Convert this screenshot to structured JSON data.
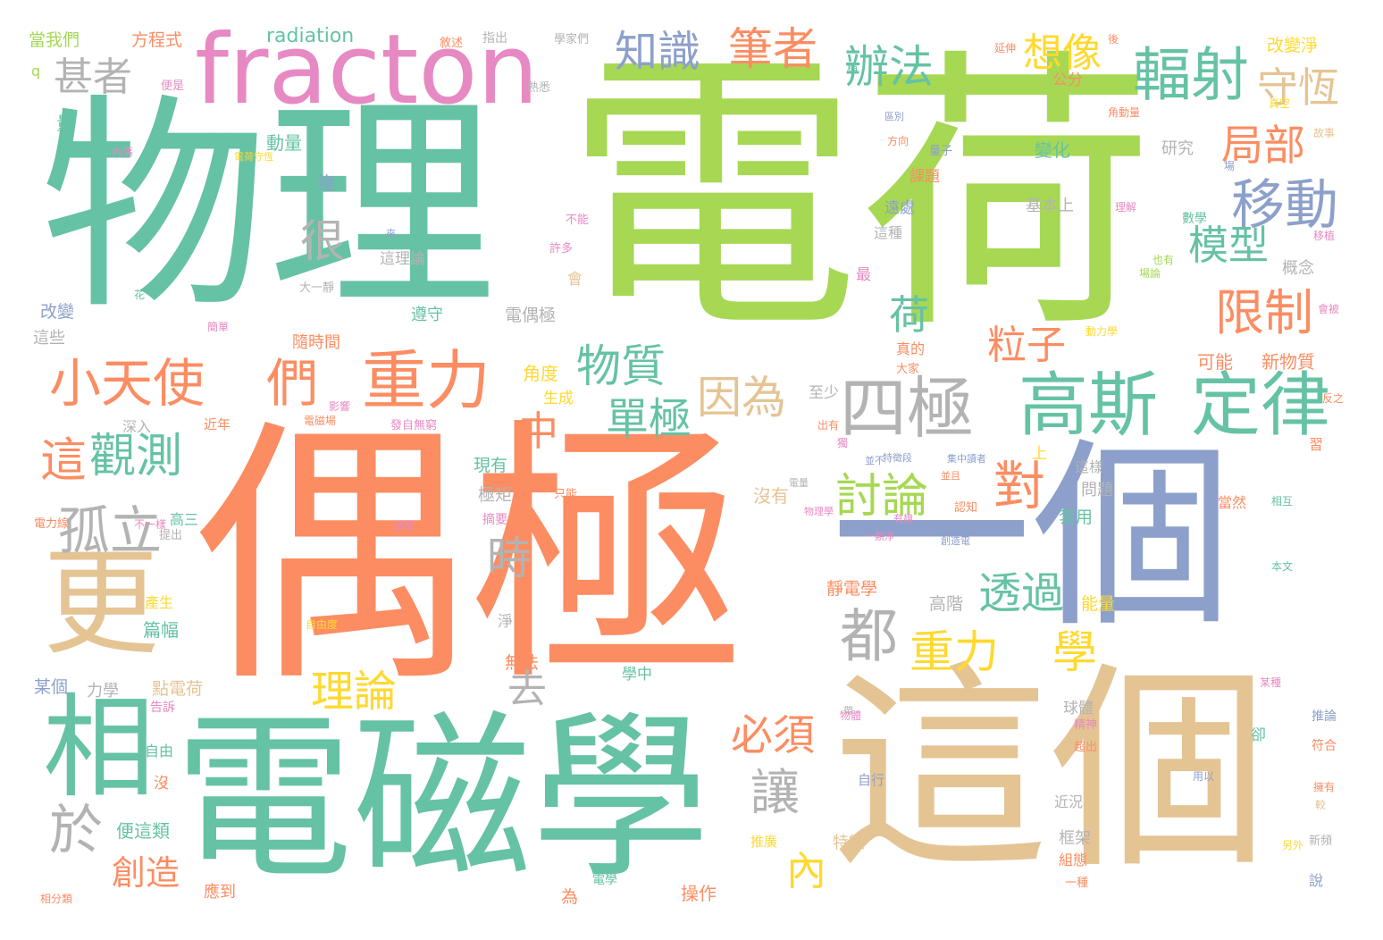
{
  "palette": {
    "green": "#66c2a5",
    "orange": "#fc8d62",
    "blue": "#8da0cb",
    "pink": "#e78ac3",
    "lime": "#a6d854",
    "yellow": "#ffd92f",
    "tan": "#e5c494",
    "gray": "#b3b3b3"
  },
  "words": [
    {
      "text": "電荷",
      "color": "lime"
    },
    {
      "text": "物理",
      "color": "green"
    },
    {
      "text": "偶極",
      "color": "orange"
    },
    {
      "text": "一個",
      "color": "blue"
    },
    {
      "text": "這個",
      "color": "tan"
    },
    {
      "text": "電磁學",
      "color": "green"
    },
    {
      "text": "fracton",
      "color": "pink"
    },
    {
      "text": "更",
      "color": "tan"
    },
    {
      "text": "相",
      "color": "green"
    },
    {
      "text": "高斯",
      "color": "green"
    },
    {
      "text": "定律",
      "color": "green"
    },
    {
      "text": "四極",
      "color": "gray"
    },
    {
      "text": "重力",
      "color": "orange"
    },
    {
      "text": "小天使",
      "color": "orange"
    },
    {
      "text": "們",
      "color": "orange"
    },
    {
      "text": "輻射",
      "color": "green"
    },
    {
      "text": "移動",
      "color": "blue"
    },
    {
      "text": "辦法",
      "color": "green"
    },
    {
      "text": "筆者",
      "color": "orange"
    },
    {
      "text": "知識",
      "color": "blue"
    },
    {
      "text": "想像",
      "color": "yellow"
    },
    {
      "text": "甚者",
      "color": "gray"
    },
    {
      "text": "守恆",
      "color": "tan"
    },
    {
      "text": "局部",
      "color": "orange"
    },
    {
      "text": "模型",
      "color": "green"
    },
    {
      "text": "限制",
      "color": "orange"
    },
    {
      "text": "粒子",
      "color": "orange"
    },
    {
      "text": "荷",
      "color": "green"
    },
    {
      "text": "物質",
      "color": "green"
    },
    {
      "text": "因為",
      "color": "tan"
    },
    {
      "text": "單極",
      "color": "green"
    },
    {
      "text": "討論",
      "color": "lime"
    },
    {
      "text": "對",
      "color": "orange"
    },
    {
      "text": "重力",
      "color": "yellow"
    },
    {
      "text": "學",
      "color": "yellow"
    },
    {
      "text": "透過",
      "color": "green"
    },
    {
      "text": "都",
      "color": "gray"
    },
    {
      "text": "這",
      "color": "orange"
    },
    {
      "text": "觀測",
      "color": "green"
    },
    {
      "text": "孤立",
      "color": "gray"
    },
    {
      "text": "很",
      "color": "gray"
    },
    {
      "text": "時",
      "color": "gray"
    },
    {
      "text": "中",
      "color": "orange"
    },
    {
      "text": "去",
      "color": "gray"
    },
    {
      "text": "理論",
      "color": "yellow"
    },
    {
      "text": "必須",
      "color": "orange"
    },
    {
      "text": "讓",
      "color": "gray"
    },
    {
      "text": "於",
      "color": "gray"
    },
    {
      "text": "創造",
      "color": "orange"
    },
    {
      "text": "內",
      "color": "yellow"
    },
    {
      "text": "radiation",
      "color": "green"
    },
    {
      "text": "當我們",
      "color": "lime"
    },
    {
      "text": "方程式",
      "color": "orange"
    },
    {
      "text": "q",
      "color": "lime"
    },
    {
      "text": "量",
      "color": "green"
    },
    {
      "text": "內落",
      "color": "pink"
    },
    {
      "text": "參考",
      "color": "green"
    },
    {
      "text": "動量",
      "color": "green"
    },
    {
      "text": "複",
      "color": "blue"
    },
    {
      "text": "改變",
      "color": "blue"
    },
    {
      "text": "這些",
      "color": "gray"
    },
    {
      "text": "遵守",
      "color": "green"
    },
    {
      "text": "電偶極",
      "color": "gray"
    },
    {
      "text": "這理論",
      "color": "gray"
    },
    {
      "text": "許多",
      "color": "pink"
    },
    {
      "text": "隨時間",
      "color": "orange"
    },
    {
      "text": "角度",
      "color": "yellow"
    },
    {
      "text": "生成",
      "color": "yellow"
    },
    {
      "text": "至少",
      "color": "gray"
    },
    {
      "text": "深入",
      "color": "gray"
    },
    {
      "text": "近年",
      "color": "orange"
    },
    {
      "text": "現有",
      "color": "green"
    },
    {
      "text": "極矩",
      "color": "gray"
    },
    {
      "text": "沒有",
      "color": "tan"
    },
    {
      "text": "高三",
      "color": "green"
    },
    {
      "text": "摘要",
      "color": "pink"
    },
    {
      "text": "篇幅",
      "color": "green"
    },
    {
      "text": "產生",
      "color": "yellow"
    },
    {
      "text": "某個",
      "color": "blue"
    },
    {
      "text": "力學",
      "color": "gray"
    },
    {
      "text": "點電荷",
      "color": "tan"
    },
    {
      "text": "告訴",
      "color": "pink"
    },
    {
      "text": "無法",
      "color": "orange"
    },
    {
      "text": "淨",
      "color": "gray"
    },
    {
      "text": "學中",
      "color": "green"
    },
    {
      "text": "自由",
      "color": "green"
    },
    {
      "text": "沒",
      "color": "orange"
    },
    {
      "text": "便這類",
      "color": "green"
    },
    {
      "text": "應到",
      "color": "orange"
    },
    {
      "text": "操作",
      "color": "orange"
    },
    {
      "text": "特徵",
      "color": "tan"
    },
    {
      "text": "推廣",
      "color": "yellow"
    },
    {
      "text": "為",
      "color": "orange"
    },
    {
      "text": "電學",
      "color": "green"
    },
    {
      "text": "自行",
      "color": "blue"
    },
    {
      "text": "近況",
      "color": "gray"
    },
    {
      "text": "框架",
      "color": "gray"
    },
    {
      "text": "組態",
      "color": "orange"
    },
    {
      "text": "一種",
      "color": "orange"
    },
    {
      "text": "球體",
      "color": "gray"
    },
    {
      "text": "精神",
      "color": "pink"
    },
    {
      "text": "超出",
      "color": "orange"
    },
    {
      "text": "卻",
      "color": "green"
    },
    {
      "text": "推論",
      "color": "blue"
    },
    {
      "text": "符合",
      "color": "orange"
    },
    {
      "text": "說",
      "color": "blue"
    },
    {
      "text": "新頻",
      "color": "gray"
    },
    {
      "text": "能量",
      "color": "yellow"
    },
    {
      "text": "高階",
      "color": "gray"
    },
    {
      "text": "靜電學",
      "color": "orange"
    },
    {
      "text": "套用",
      "color": "green"
    },
    {
      "text": "問題",
      "color": "gray"
    },
    {
      "text": "這樣",
      "color": "gray"
    },
    {
      "text": "當然",
      "color": "orange"
    },
    {
      "text": "相互",
      "color": "green"
    },
    {
      "text": "本文",
      "color": "green"
    },
    {
      "text": "上",
      "color": "yellow"
    },
    {
      "text": "認知",
      "color": "orange"
    },
    {
      "text": "可能",
      "color": "orange"
    },
    {
      "text": "新物質",
      "color": "orange"
    },
    {
      "text": "概念",
      "color": "gray"
    },
    {
      "text": "真的",
      "color": "orange"
    },
    {
      "text": "大家",
      "color": "orange"
    },
    {
      "text": "最",
      "color": "pink"
    },
    {
      "text": "這種",
      "color": "gray"
    },
    {
      "text": "遠處",
      "color": "blue"
    },
    {
      "text": "基本上",
      "color": "gray"
    },
    {
      "text": "變化",
      "color": "green"
    },
    {
      "text": "研究",
      "color": "gray"
    },
    {
      "text": "數學",
      "color": "green"
    },
    {
      "text": "課題",
      "color": "orange"
    },
    {
      "text": "量子",
      "color": "blue"
    },
    {
      "text": "公分",
      "color": "orange"
    },
    {
      "text": "改變淨",
      "color": "yellow"
    },
    {
      "text": "指出",
      "color": "gray"
    },
    {
      "text": "敘述",
      "color": "orange"
    },
    {
      "text": "學家們",
      "color": "gray"
    },
    {
      "text": "延伸",
      "color": "orange"
    },
    {
      "text": "方向",
      "color": "orange"
    },
    {
      "text": "故事",
      "color": "tan"
    },
    {
      "text": "區別",
      "color": "blue"
    },
    {
      "text": "熟悉",
      "color": "gray"
    },
    {
      "text": "便是",
      "color": "pink"
    },
    {
      "text": "大一靜",
      "color": "gray"
    },
    {
      "text": "不能",
      "color": "pink"
    },
    {
      "text": "理解",
      "color": "pink"
    },
    {
      "text": "來",
      "color": "blue"
    },
    {
      "text": "會",
      "color": "tan"
    },
    {
      "text": "簡單",
      "color": "pink"
    },
    {
      "text": "花",
      "color": "green"
    },
    {
      "text": "影響",
      "color": "pink"
    },
    {
      "text": "電磁場",
      "color": "orange"
    },
    {
      "text": "發自無窮",
      "color": "pink"
    },
    {
      "text": "只能",
      "color": "orange"
    },
    {
      "text": "出有",
      "color": "orange"
    },
    {
      "text": "獨",
      "color": "pink"
    },
    {
      "text": "特徵段",
      "color": "blue"
    },
    {
      "text": "並不",
      "color": "blue"
    },
    {
      "text": "並且",
      "color": "orange"
    },
    {
      "text": "集中讀者",
      "color": "blue"
    },
    {
      "text": "電量",
      "color": "gray"
    },
    {
      "text": "一類淨",
      "color": "pink"
    },
    {
      "text": "創造電",
      "color": "blue"
    },
    {
      "text": "電力線",
      "color": "orange"
    },
    {
      "text": "不一樣",
      "color": "pink"
    },
    {
      "text": "有趣",
      "color": "pink"
    },
    {
      "text": "自由度",
      "color": "yellow"
    },
    {
      "text": "提出",
      "color": "gray"
    },
    {
      "text": "物理學",
      "color": "pink"
    },
    {
      "text": "用以",
      "color": "blue"
    },
    {
      "text": "較",
      "color": "tan"
    },
    {
      "text": "相分類",
      "color": "orange"
    },
    {
      "text": "習",
      "color": "orange"
    },
    {
      "text": "帶",
      "color": "gray"
    },
    {
      "text": "動力學",
      "color": "yellow"
    },
    {
      "text": "會被",
      "color": "pink"
    },
    {
      "text": "後",
      "color": "orange"
    },
    {
      "text": "稱",
      "color": "green"
    },
    {
      "text": "電荷守恆",
      "color": "yellow"
    },
    {
      "text": "擴散",
      "color": "pink"
    },
    {
      "text": "也有",
      "color": "lime"
    },
    {
      "text": "另外",
      "color": "yellow"
    },
    {
      "text": "移植",
      "color": "pink"
    },
    {
      "text": "實驗",
      "color": "blue"
    },
    {
      "text": "反之",
      "color": "orange"
    },
    {
      "text": "場論",
      "color": "lime"
    },
    {
      "text": "物體",
      "color": "pink"
    },
    {
      "text": "某種",
      "color": "pink"
    },
    {
      "text": "場",
      "color": "blue"
    },
    {
      "text": "角動量",
      "color": "orange"
    },
    {
      "text": "擁有",
      "color": "orange"
    },
    {
      "text": "真空",
      "color": "yellow"
    }
  ]
}
